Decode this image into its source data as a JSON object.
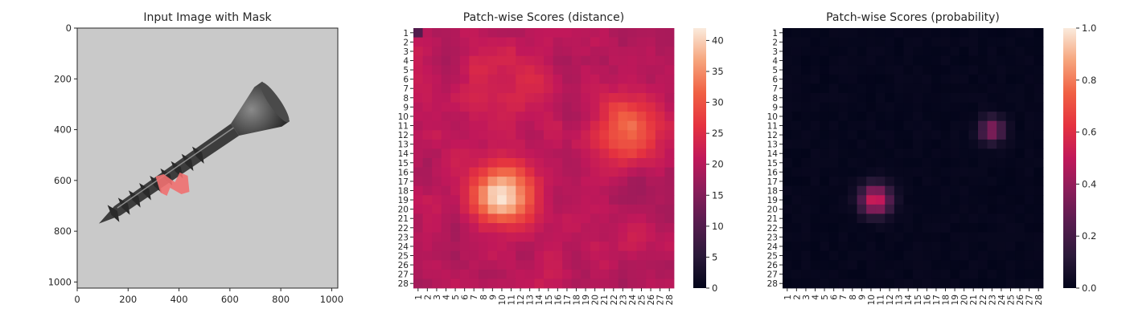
{
  "chart_data": [
    {
      "type": "image",
      "title": "Input Image with Mask",
      "xticks": [
        0,
        200,
        400,
        600,
        800,
        1000
      ],
      "yticks": [
        0,
        200,
        400,
        600,
        800,
        1000
      ],
      "xlim": [
        0,
        1024
      ],
      "ylim": [
        1024,
        0
      ],
      "image_size": 1024,
      "background_gray": "#c9c9c9",
      "mask_color": "#f07070",
      "screw": {
        "tip": [
          85,
          770
        ],
        "shank_end": [
          620,
          400
        ],
        "head_center": [
          840,
          300
        ],
        "mask_center": [
          365,
          610
        ]
      }
    },
    {
      "type": "heatmap",
      "title": "Patch-wise Scores (distance)",
      "grid_size": 28,
      "tick_labels": [
        "1",
        "2",
        "3",
        "4",
        "5",
        "6",
        "7",
        "8",
        "9",
        "10",
        "11",
        "12",
        "13",
        "14",
        "15",
        "16",
        "17",
        "18",
        "19",
        "20",
        "21",
        "22",
        "23",
        "24",
        "25",
        "26",
        "27",
        "28"
      ],
      "colorbar_ticks": [
        0,
        5,
        10,
        15,
        20,
        25,
        30,
        35,
        40
      ],
      "vmin": 0,
      "vmax": 42,
      "base_value": 20,
      "noise_amplitude": 5,
      "low_cell": {
        "row": 1,
        "col": 1,
        "value": 10
      },
      "hotspots": [
        {
          "row": 18.5,
          "col": 10,
          "peak": 21,
          "radius": 2.3
        },
        {
          "row": 11.5,
          "col": 23.5,
          "peak": 13,
          "radius": 2.3
        },
        {
          "row": 7.5,
          "col": 10.5,
          "peak": 5,
          "radius": 3.0
        }
      ]
    },
    {
      "type": "heatmap",
      "title": "Patch-wise Scores (probability)",
      "grid_size": 28,
      "tick_labels": [
        "1",
        "2",
        "3",
        "4",
        "5",
        "6",
        "7",
        "8",
        "9",
        "10",
        "11",
        "12",
        "13",
        "14",
        "15",
        "16",
        "17",
        "18",
        "19",
        "20",
        "21",
        "22",
        "23",
        "24",
        "25",
        "26",
        "27",
        "28"
      ],
      "colorbar_ticks": [
        "0.0",
        "0.2",
        "0.4",
        "0.6",
        "0.8",
        "1.0"
      ],
      "vmin": 0,
      "vmax": 1,
      "base_value": 0,
      "hotspots": [
        {
          "row": 19,
          "col": 10.5,
          "peak": 0.55,
          "radius": 1.1
        },
        {
          "row": 11.5,
          "col": 23,
          "peak": 0.38,
          "radius": 0.9
        }
      ]
    }
  ]
}
